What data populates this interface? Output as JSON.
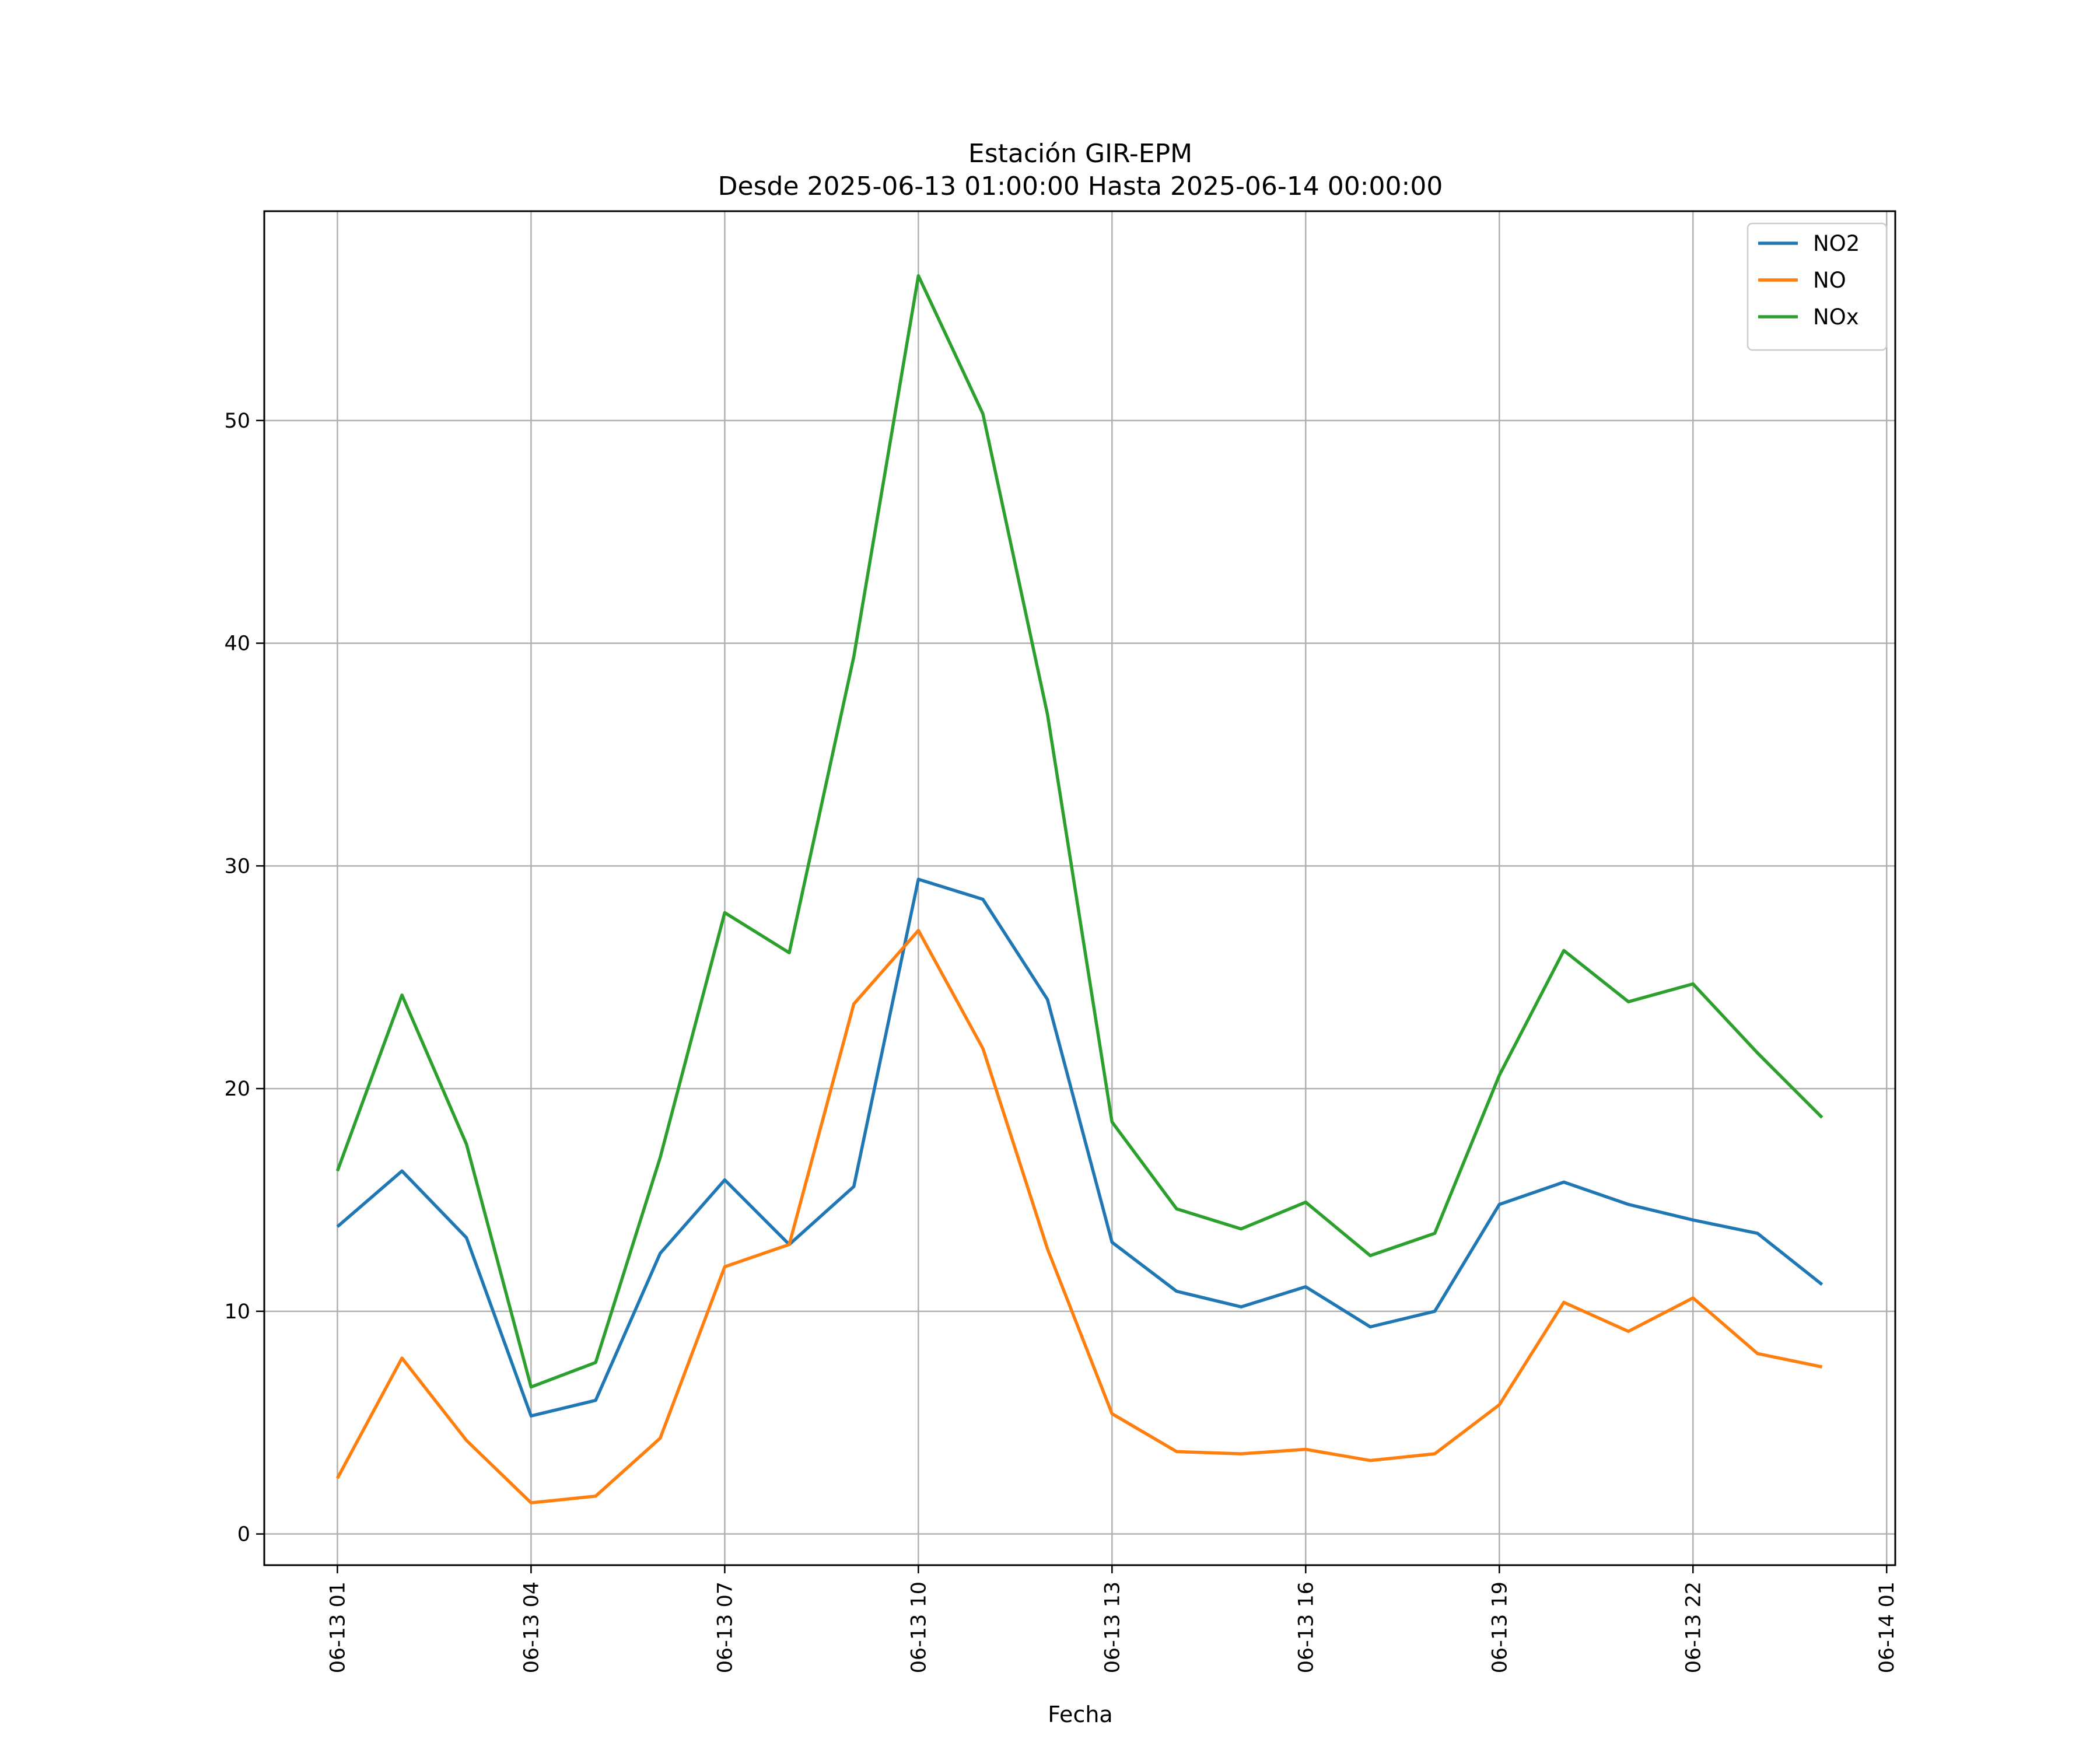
{
  "chart_data": {
    "type": "line",
    "title": "Estación GIR-EPM",
    "subtitle": "Desde 2025-06-13 01:00:00 Hasta 2025-06-14 00:00:00",
    "xlabel": "Fecha",
    "ylabel": "",
    "x": [
      "2025-06-13 01:00",
      "2025-06-13 02:00",
      "2025-06-13 03:00",
      "2025-06-13 04:00",
      "2025-06-13 05:00",
      "2025-06-13 06:00",
      "2025-06-13 07:00",
      "2025-06-13 08:00",
      "2025-06-13 09:00",
      "2025-06-13 10:00",
      "2025-06-13 11:00",
      "2025-06-13 12:00",
      "2025-06-13 13:00",
      "2025-06-13 14:00",
      "2025-06-13 15:00",
      "2025-06-13 16:00",
      "2025-06-13 17:00",
      "2025-06-13 18:00",
      "2025-06-13 19:00",
      "2025-06-13 20:00",
      "2025-06-13 21:00",
      "2025-06-13 22:00",
      "2025-06-13 23:00",
      "2025-06-14 00:00"
    ],
    "xlim": [
      "2025-06-12 23:52",
      "2025-06-14 01:08"
    ],
    "xticks": [
      "06-13 01",
      "06-13 04",
      "06-13 07",
      "06-13 10",
      "06-13 13",
      "06-13 16",
      "06-13 19",
      "06-13 22",
      "06-14 01"
    ],
    "ylim": [
      -1.4,
      59.4
    ],
    "yticks": [
      0,
      10,
      20,
      30,
      40,
      50
    ],
    "grid": true,
    "legend_position": "top-right",
    "series": [
      {
        "name": "NO2",
        "color": "#1f77b4",
        "values": [
          13.8,
          16.3,
          13.3,
          5.3,
          6.0,
          12.6,
          15.9,
          13.0,
          15.6,
          29.4,
          28.5,
          24.0,
          13.1,
          10.9,
          10.2,
          11.1,
          9.3,
          10.0,
          14.8,
          15.8,
          14.8,
          14.1,
          13.5,
          11.2
        ]
      },
      {
        "name": "NO",
        "color": "#ff7f0e",
        "values": [
          2.5,
          7.9,
          4.2,
          1.4,
          1.7,
          4.3,
          12.0,
          13.0,
          23.8,
          27.1,
          21.8,
          12.8,
          5.4,
          3.7,
          3.6,
          3.8,
          3.3,
          3.6,
          5.8,
          10.4,
          9.1,
          10.6,
          8.1,
          7.5
        ]
      },
      {
        "name": "NOx",
        "color": "#2ca02c",
        "values": [
          16.3,
          24.2,
          17.5,
          6.6,
          7.7,
          16.9,
          27.9,
          26.1,
          39.4,
          56.5,
          50.3,
          36.8,
          18.5,
          14.6,
          13.7,
          14.9,
          12.5,
          13.5,
          20.6,
          26.2,
          23.9,
          24.7,
          21.6,
          18.7
        ]
      }
    ]
  }
}
